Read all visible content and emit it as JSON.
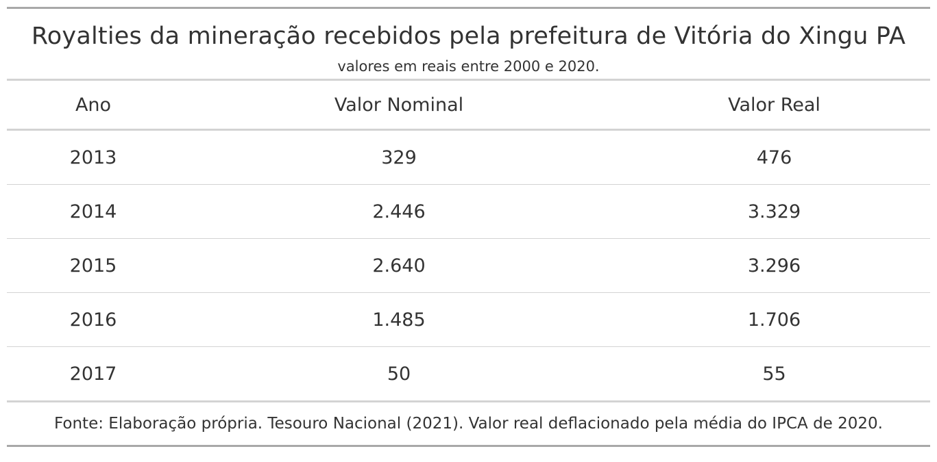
{
  "table": {
    "title": "Royalties da mineração recebidos pela prefeitura de Vitória do Xingu PA",
    "subtitle": "valores em reais entre 2000 e 2020.",
    "columns": [
      "Ano",
      "Valor Nominal",
      "Valor Real"
    ],
    "rows": [
      [
        "2013",
        "329",
        "476"
      ],
      [
        "2014",
        "2.446",
        "3.329"
      ],
      [
        "2015",
        "2.640",
        "3.296"
      ],
      [
        "2016",
        "1.485",
        "1.706"
      ],
      [
        "2017",
        "50",
        "55"
      ]
    ],
    "footnote": "Fonte: Elaboração própria. Tesouro Nacional (2021). Valor real deflacionado pela média do IPCA de 2020."
  }
}
